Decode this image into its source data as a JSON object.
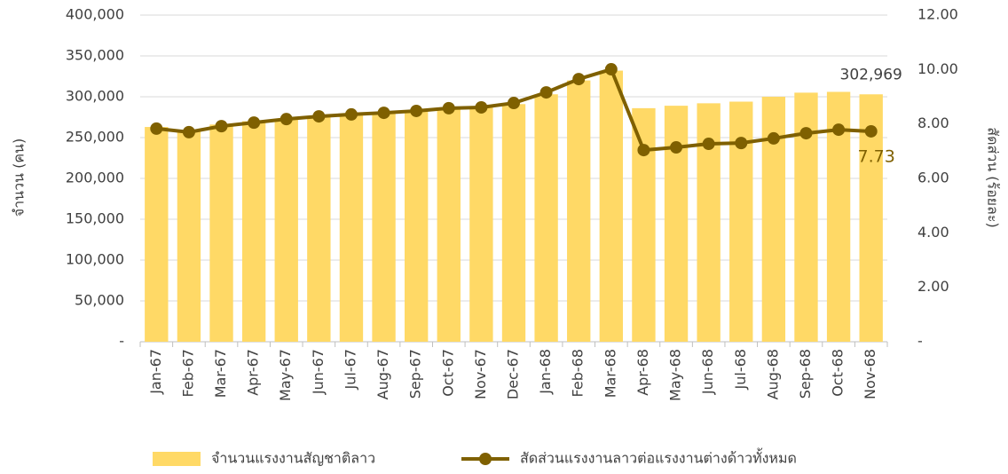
{
  "chart_data": {
    "type": "bar_line",
    "categories": [
      "Jan-67",
      "Feb-67",
      "Mar-67",
      "Apr-67",
      "May-67",
      "Jun-67",
      "Jul-67",
      "Aug-67",
      "Sep-67",
      "Oct-67",
      "Nov-67",
      "Dec-67",
      "Jan-68",
      "Feb-68",
      "Mar-68",
      "Apr-68",
      "May-68",
      "Jun-68",
      "Jul-68",
      "Aug-68",
      "Sep-68",
      "Oct-68",
      "Nov-68"
    ],
    "series": [
      {
        "name": "จำนวนแรงงานสัญชาติลาว",
        "type": "bar",
        "color": "#FFD966",
        "values": [
          263000,
          258000,
          266000,
          270000,
          273000,
          276000,
          279000,
          281000,
          283000,
          285000,
          287000,
          291000,
          303000,
          320000,
          332000,
          286000,
          289000,
          292000,
          294000,
          300000,
          305000,
          306000,
          302969
        ],
        "value_labels": [
          null,
          null,
          null,
          null,
          null,
          null,
          null,
          null,
          null,
          null,
          null,
          null,
          null,
          null,
          null,
          null,
          null,
          null,
          null,
          null,
          null,
          null,
          "302,969"
        ]
      },
      {
        "name": "สัดส่วนแรงงานลาวต่อแรงงานต่างด้าวทั้งหมด",
        "type": "line",
        "axis": "y2",
        "color": "#7F6000",
        "values": [
          7.83,
          7.7,
          7.92,
          8.05,
          8.18,
          8.28,
          8.35,
          8.41,
          8.48,
          8.58,
          8.61,
          8.77,
          9.16,
          9.65,
          10.01,
          7.04,
          7.14,
          7.27,
          7.3,
          7.47,
          7.66,
          7.79,
          7.73
        ],
        "value_labels": [
          null,
          null,
          null,
          null,
          null,
          null,
          null,
          null,
          null,
          null,
          null,
          null,
          null,
          null,
          null,
          null,
          null,
          null,
          null,
          null,
          null,
          null,
          "7.73"
        ]
      }
    ],
    "y_label": "จำนวน (คน)",
    "y2_label": "สัดส่วน (ร้อยละ)",
    "ylim": [
      0,
      400000
    ],
    "yticks": [
      {
        "value": 0,
        "label": "-"
      },
      {
        "value": 50000,
        "label": "50,000"
      },
      {
        "value": 100000,
        "label": "100,000"
      },
      {
        "value": 150000,
        "label": "150,000"
      },
      {
        "value": 200000,
        "label": "200,000"
      },
      {
        "value": 250000,
        "label": "250,000"
      },
      {
        "value": 300000,
        "label": "300,000"
      },
      {
        "value": 350000,
        "label": "350,000"
      },
      {
        "value": 400000,
        "label": "400,000"
      }
    ],
    "y2lim": [
      0,
      12
    ],
    "y2ticks": [
      {
        "value": 0,
        "label": "-"
      },
      {
        "value": 2,
        "label": "2.00"
      },
      {
        "value": 4,
        "label": "4.00"
      },
      {
        "value": 6,
        "label": "6.00"
      },
      {
        "value": 8,
        "label": "8.00"
      },
      {
        "value": 10,
        "label": "10.00"
      },
      {
        "value": 12,
        "label": "12.00"
      }
    ],
    "grid": true,
    "legend": "bottom"
  }
}
